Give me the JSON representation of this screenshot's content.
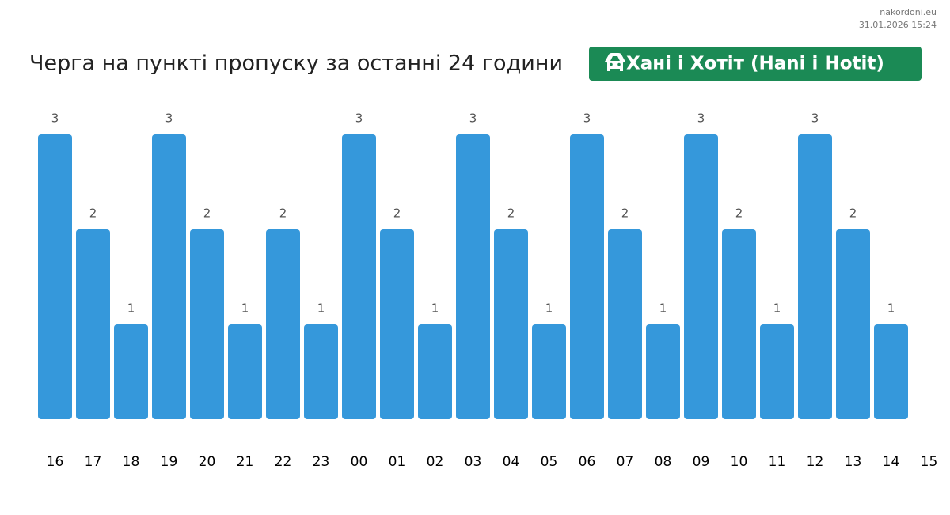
{
  "site": "nakordoni.eu",
  "timestamp": "31.01.2026 15:24",
  "chart_data": {
    "type": "bar",
    "title": "Черга на пункті пропуску за останні 24 години",
    "checkpoint": "Хані і Хотіт (Hani i Hotit)",
    "checkpoint_color": "#1b8a55",
    "categories": [
      "16",
      "17",
      "18",
      "19",
      "20",
      "21",
      "22",
      "23",
      "00",
      "01",
      "02",
      "03",
      "04",
      "05",
      "06",
      "07",
      "08",
      "09",
      "10",
      "11",
      "12",
      "13",
      "14",
      "15"
    ],
    "values": [
      3,
      2,
      1,
      3,
      2,
      1,
      2,
      1,
      3,
      2,
      1,
      3,
      2,
      1,
      3,
      2,
      1,
      3,
      2,
      1,
      3,
      2,
      1,
      null
    ],
    "color": "#3598db",
    "ylim": [
      0,
      3
    ]
  }
}
